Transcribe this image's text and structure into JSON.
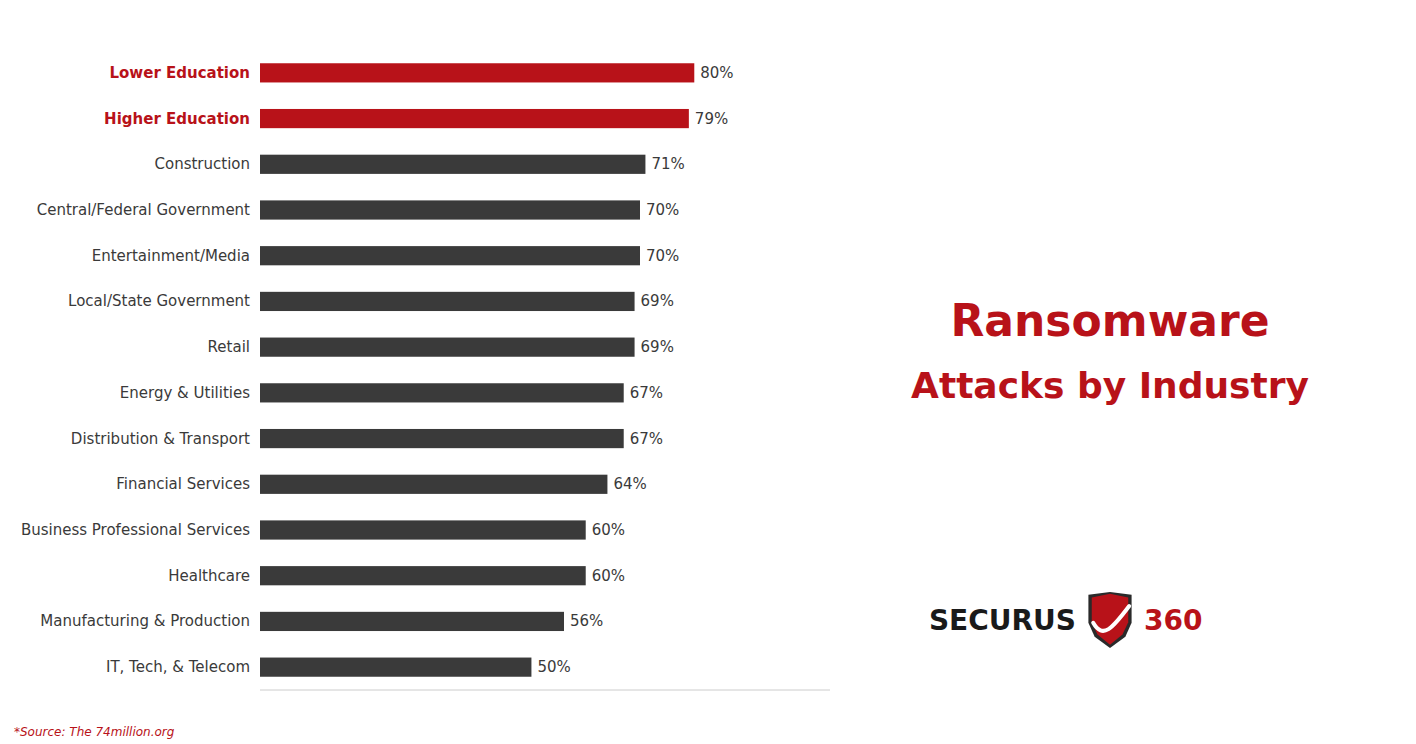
{
  "chart_data": {
    "type": "bar",
    "orientation": "horizontal",
    "title": "Ransomware",
    "subtitle": "Attacks by Industry",
    "annotations": [
      "*Source: The 74million.org",
      "SECURUS",
      "360"
    ],
    "categories": [
      "IT, Tech, & Telecom",
      "Manufacturing & Production",
      "Healthcare",
      "Business Professional Services",
      "Financial Services",
      "Distribution & Transport",
      "Energy & Utilities",
      "Retail",
      "Local/State Government",
      "Entertainment/Media",
      "Central/Federal Government",
      "Construction",
      "Higher Education",
      "Lower Education"
    ],
    "values": [
      50,
      56,
      60,
      60,
      64,
      67,
      67,
      69,
      69,
      70,
      70,
      71,
      79,
      80
    ],
    "value_labels": [
      "50%",
      "56%",
      "60%",
      "60%",
      "64%",
      "67%",
      "67%",
      "69%",
      "69%",
      "70%",
      "70%",
      "71%",
      "79%",
      "80%"
    ],
    "colors": [
      "#3a3a3a",
      "#3a3a3a",
      "#3a3a3a",
      "#3a3a3a",
      "#3a3a3a",
      "#3a3a3a",
      "#3a3a3a",
      "#3a3a3a",
      "#3a3a3a",
      "#3a3a3a",
      "#3a3a3a",
      "#3a3a3a",
      "#b81219",
      "#b81219"
    ],
    "xlim": [
      0,
      105
    ],
    "data_labels": true,
    "tick_labels": "y",
    "grid": false
  }
}
